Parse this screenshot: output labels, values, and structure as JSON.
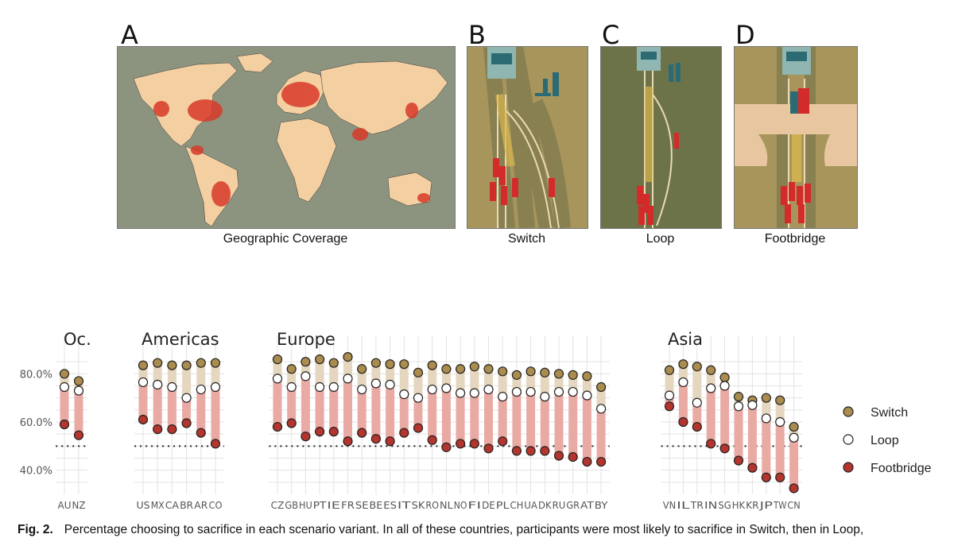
{
  "panels": [
    {
      "letter": "A",
      "caption": "Geographic Coverage"
    },
    {
      "letter": "B",
      "caption": "Switch"
    },
    {
      "letter": "C",
      "caption": "Loop"
    },
    {
      "letter": "D",
      "caption": "Footbridge"
    }
  ],
  "figure_caption": {
    "label": "Fig. 2.",
    "text": "Percentage choosing to sacrifice in each scenario variant. In all of these countries, participants were most likely to sacrifice in Switch, then in Loop,"
  },
  "colors": {
    "switch": "#a98c4e",
    "loop": "#ffffff",
    "footbridge": "#b3352d",
    "band_upper": "#e5d6bf",
    "band_lower": "#e9aaa4",
    "map_bg": "#8c947f",
    "land": "#f3cfa1"
  },
  "chart_data": {
    "type": "dot-range",
    "ylim": [
      30,
      90
    ],
    "ytick_labels": [
      "40.0%",
      "60.0%",
      "80.0%"
    ],
    "yticks": [
      40,
      60,
      80
    ],
    "reference_line": 50,
    "legend": [
      "Switch",
      "Loop",
      "Footbridge"
    ],
    "regions": [
      {
        "name": "Oc.",
        "countries": [
          "AU",
          "NZ"
        ],
        "switch": [
          80,
          77
        ],
        "loop": [
          74.5,
          73
        ],
        "footbridge": [
          59,
          54.5
        ]
      },
      {
        "name": "Americas",
        "countries": [
          "US",
          "MX",
          "CA",
          "BR",
          "AR",
          "CO"
        ],
        "switch": [
          83.5,
          84.5,
          83.5,
          83.5,
          84.5,
          84.5
        ],
        "loop": [
          76.5,
          75.5,
          74.5,
          70,
          73.5,
          74.5
        ],
        "footbridge": [
          61,
          57,
          57,
          59.5,
          55.5,
          51
        ]
      },
      {
        "name": "Europe",
        "countries": [
          "CZ",
          "GB",
          "HU",
          "PT",
          "IE",
          "FR",
          "SE",
          "BE",
          "ES",
          "IT",
          "SK",
          "RO",
          "NL",
          "NO",
          "FI",
          "DE",
          "PL",
          "CH",
          "UA",
          "DK",
          "RU",
          "GR",
          "AT",
          "BY"
        ],
        "switch": [
          86,
          82,
          85,
          86,
          84.5,
          87,
          82,
          84.5,
          84,
          84,
          80.5,
          83.5,
          82,
          82,
          83,
          82,
          81,
          79.5,
          81,
          80.5,
          80,
          79.5,
          79,
          74.5
        ],
        "loop": [
          78,
          74.5,
          79,
          74.5,
          74.5,
          78,
          73.5,
          76,
          75.5,
          71.5,
          70,
          73.5,
          74,
          72,
          72,
          73.5,
          70.5,
          72.5,
          72.5,
          70.5,
          72.5,
          72.5,
          71,
          65.5
        ],
        "footbridge": [
          58,
          59.5,
          54,
          56,
          56,
          52,
          55.5,
          53,
          52,
          55.5,
          57.5,
          52.5,
          49.5,
          51,
          51,
          49,
          52,
          48,
          48,
          48,
          46,
          45.5,
          43.5,
          43.5
        ]
      },
      {
        "name": "Asia",
        "countries": [
          "VN",
          "IL",
          "TR",
          "IN",
          "SG",
          "HK",
          "KR",
          "JP",
          "TW",
          "CN"
        ],
        "switch": [
          81.5,
          84,
          83,
          81.5,
          78.5,
          70.5,
          69,
          70,
          69,
          58
        ],
        "loop": [
          71,
          76.5,
          68,
          74,
          75,
          66.5,
          67,
          61.5,
          60,
          53.5
        ],
        "footbridge": [
          66.5,
          60,
          58,
          51,
          49,
          44,
          41,
          37,
          37,
          32.5
        ]
      }
    ]
  }
}
